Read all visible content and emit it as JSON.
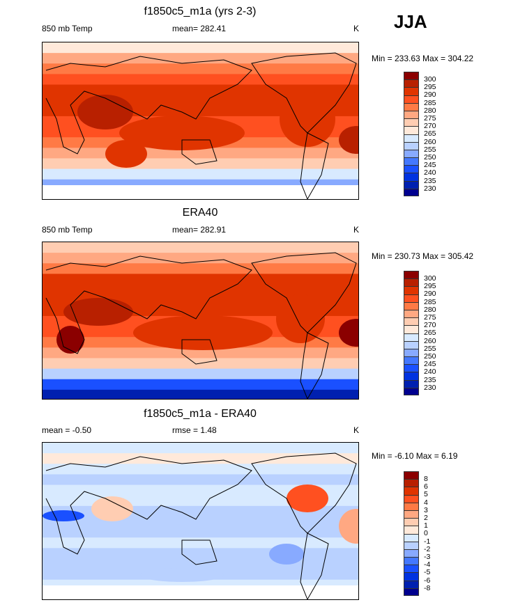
{
  "season": "JJA",
  "colors": [
    "#8b0000",
    "#b82000",
    "#e03400",
    "#ff5020",
    "#ff7a45",
    "#ffa882",
    "#ffcdb2",
    "#ffe9da",
    "#d8eaff",
    "#b9d1ff",
    "#88aaff",
    "#4478ff",
    "#1a50ff",
    "#0032e0",
    "#0020b0",
    "#00008f"
  ],
  "panels": [
    {
      "title": "f1850c5_m1a (yrs 2-3)",
      "left": "850 mb Temp",
      "center": "mean= 282.41",
      "units": "K",
      "minmax": "Min = 233.63 Max = 304.22",
      "levels": [
        "300",
        "295",
        "290",
        "285",
        "280",
        "275",
        "270",
        "265",
        "260",
        "255",
        "250",
        "245",
        "240",
        "235",
        "230"
      ]
    },
    {
      "title": "ERA40",
      "left": "850 mb Temp",
      "center": "mean= 282.91",
      "units": "K",
      "minmax": "Min = 230.73 Max = 305.42",
      "levels": [
        "300",
        "295",
        "290",
        "285",
        "280",
        "275",
        "270",
        "265",
        "260",
        "255",
        "250",
        "245",
        "240",
        "235",
        "230"
      ]
    },
    {
      "title": "f1850c5_m1a - ERA40",
      "left": "mean =  -0.50",
      "center": "rmse =  1.48",
      "units": "K",
      "minmax": "Min =  -6.10 Max =   6.19",
      "levels": [
        "8",
        "6",
        "5",
        "4",
        "3",
        "2",
        "1",
        "0",
        "-1",
        "-2",
        "-3",
        "-4",
        "-5",
        "-6",
        "-8"
      ]
    }
  ]
}
